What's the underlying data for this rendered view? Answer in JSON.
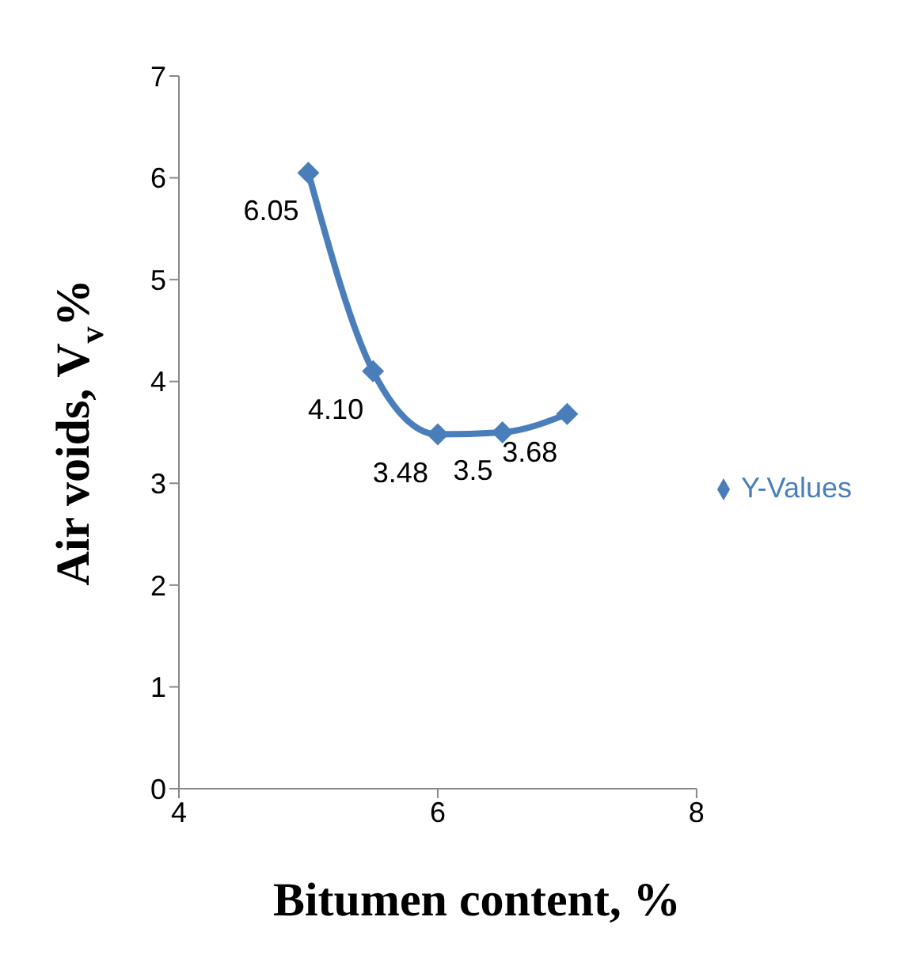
{
  "chart_data": {
    "type": "line",
    "xlabel": "Bitumen content, %",
    "ylabel": "Air voids, V$_{v}$%",
    "x": [
      5,
      5.5,
      6,
      6.5,
      7
    ],
    "series": [
      {
        "name": "Y-Values",
        "color": "#4a7ebb",
        "values": [
          6.05,
          4.1,
          3.48,
          3.5,
          3.68
        ],
        "value_labels": [
          "6.05",
          "4.10",
          "3.48",
          "3.5",
          "3.68"
        ]
      }
    ],
    "xlim": [
      4,
      8
    ],
    "xticks": [
      4,
      6,
      8
    ],
    "ylim": [
      0,
      7
    ],
    "yticks": [
      0,
      1,
      2,
      3,
      4,
      5,
      6,
      7
    ],
    "grid": false,
    "legend": "right",
    "marker": "diamond",
    "line_style": "solid"
  }
}
